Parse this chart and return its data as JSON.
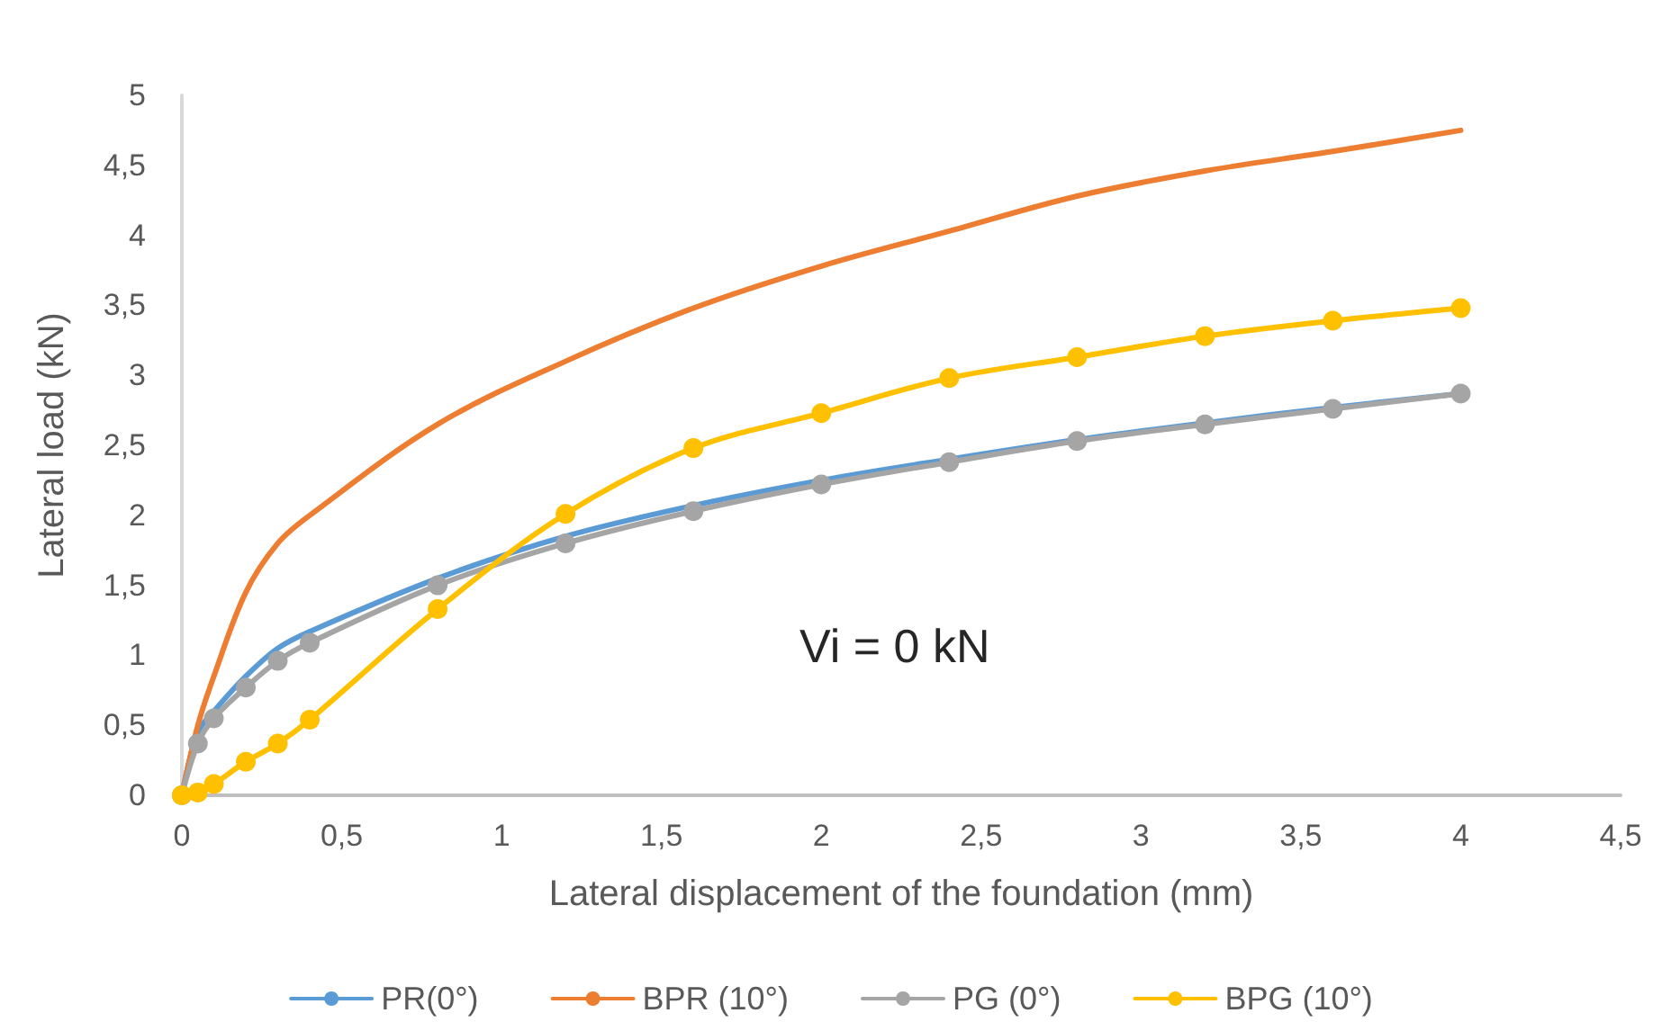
{
  "chart_data": {
    "type": "line",
    "xlabel": "Lateral displacement of the foundation (mm)",
    "ylabel": "Lateral load (kN)",
    "annotations": [
      "Vi = 0 kN"
    ],
    "xlim": [
      0,
      4.5
    ],
    "xticks": [
      0,
      {
        "value": 0.5,
        "label": "0,5"
      },
      1,
      {
        "value": 1.5,
        "label": "1,5"
      },
      2,
      {
        "value": 2.5,
        "label": "2,5"
      },
      3,
      {
        "value": 3.5,
        "label": "3,5"
      },
      4,
      {
        "value": 4.5,
        "label": "4,5"
      }
    ],
    "ylim": [
      0,
      5
    ],
    "yticks": [
      0,
      {
        "value": 0.5,
        "label": "0,5"
      },
      1,
      {
        "value": 1.5,
        "label": "1,5"
      },
      2,
      {
        "value": 2.5,
        "label": "2,5"
      },
      3,
      {
        "value": 3.5,
        "label": "3,5"
      },
      4,
      {
        "value": 4.5,
        "label": "4,5"
      },
      5
    ],
    "x": [
      0,
      0.05,
      0.1,
      0.2,
      0.3,
      0.4,
      0.8,
      1.2,
      1.6,
      2,
      2.4,
      2.8,
      3.2,
      3.6,
      4
    ],
    "grid": false,
    "legend": "bottom",
    "series": [
      {
        "name": "PR(0°)",
        "color": "#5b9bd5",
        "marker": "none",
        "values": [
          0,
          0.45,
          0.6,
          0.85,
          1.05,
          1.17,
          1.55,
          1.85,
          2.07,
          2.25,
          2.4,
          2.54,
          2.66,
          2.77,
          2.87
        ]
      },
      {
        "name": "BPR (10°)",
        "color": "#ed7d31",
        "marker": "none",
        "values": [
          0,
          0.5,
          0.85,
          1.45,
          1.8,
          2.0,
          2.65,
          3.1,
          3.48,
          3.78,
          4.03,
          4.28,
          4.46,
          4.6,
          4.75
        ]
      },
      {
        "name": "PG (0°)",
        "color": "#a5a5a5",
        "marker": "circle",
        "values": [
          0,
          0.37,
          0.55,
          0.77,
          0.96,
          1.09,
          1.5,
          1.8,
          2.03,
          2.22,
          2.38,
          2.53,
          2.65,
          2.76,
          2.87
        ]
      },
      {
        "name": "BPG (10°)",
        "color": "#ffc000",
        "marker": "circle",
        "values": [
          0,
          0.02,
          0.08,
          0.24,
          0.37,
          0.54,
          1.33,
          2.01,
          2.48,
          2.73,
          2.98,
          3.13,
          3.28,
          3.39,
          3.48
        ]
      }
    ]
  }
}
